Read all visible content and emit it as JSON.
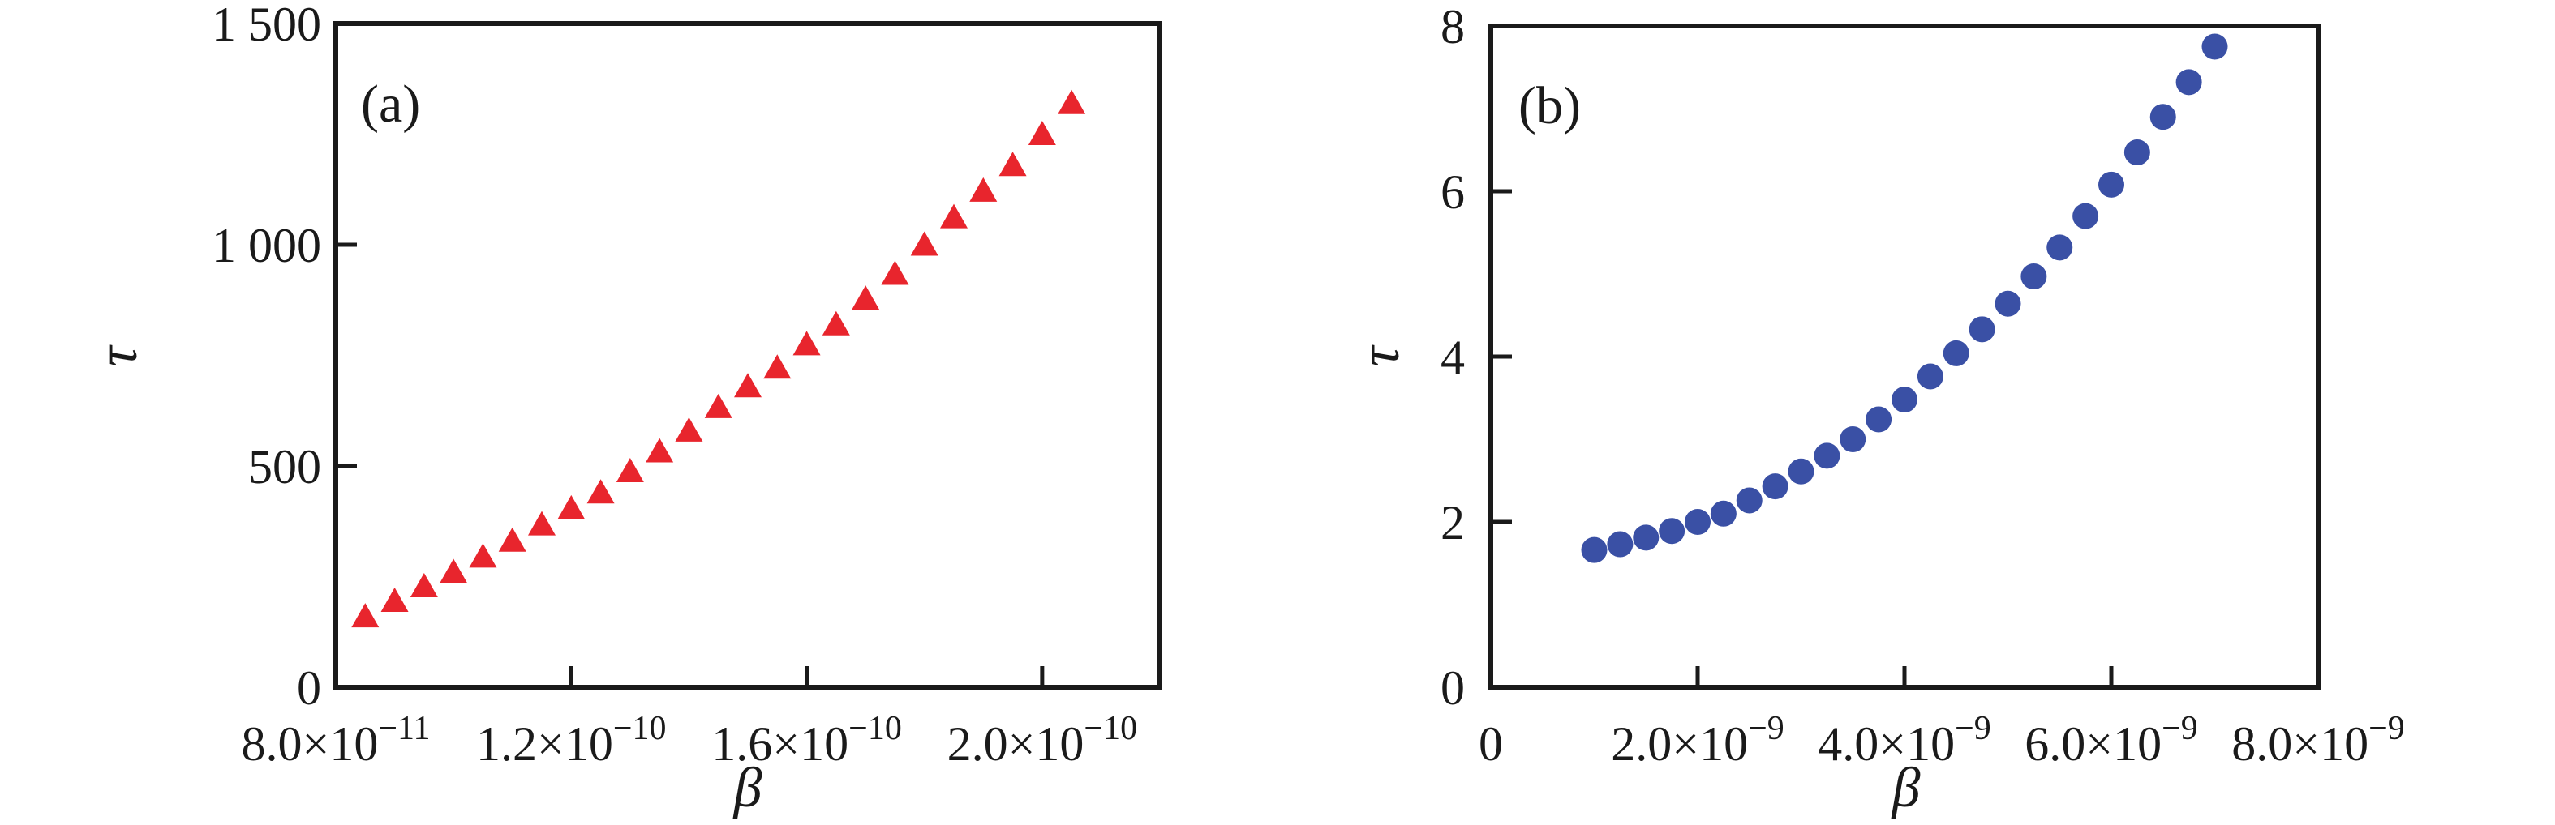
{
  "figure": {
    "background": "#ffffff",
    "frame_color": "#1a1a1a",
    "text_color": "#1a1a1a"
  },
  "chart_data": [
    {
      "id": "a",
      "type": "scatter",
      "panel_label": "(a)",
      "xlabel": "β",
      "ylabel": "τ",
      "legend": "none",
      "grid": false,
      "marker": {
        "shape": "triangle-up",
        "color": "#e8252d",
        "width": 34,
        "height": 30
      },
      "x_units": "1e-10",
      "xlim": [
        0.8,
        2.2
      ],
      "ylim": [
        0,
        1500
      ],
      "x_ticks": [
        {
          "v": 0.8,
          "main": "8.0×10",
          "sup": "−11"
        },
        {
          "v": 1.2,
          "main": "1.2×10",
          "sup": "−10"
        },
        {
          "v": 1.6,
          "main": "1.6×10",
          "sup": "−10"
        },
        {
          "v": 2.0,
          "main": "2.0×10",
          "sup": "−10"
        }
      ],
      "y_ticks": [
        {
          "v": 0,
          "main": "0"
        },
        {
          "v": 500,
          "main": "500"
        },
        {
          "v": 1000,
          "main": "1 000"
        },
        {
          "v": 1500,
          "main": "1 500"
        }
      ],
      "points": {
        "x": [
          0.85,
          0.9,
          0.95,
          1.0,
          1.05,
          1.1,
          1.15,
          1.2,
          1.25,
          1.3,
          1.35,
          1.4,
          1.45,
          1.5,
          1.55,
          1.6,
          1.65,
          1.7,
          1.75,
          1.8,
          1.85,
          1.9,
          1.95,
          2.0,
          2.05
        ],
        "y": [
          160,
          195,
          228,
          260,
          295,
          331,
          368,
          404,
          440,
          488,
          533,
          580,
          633,
          680,
          722,
          775,
          820,
          878,
          934,
          1000,
          1062,
          1122,
          1180,
          1250,
          1320
        ]
      }
    },
    {
      "id": "b",
      "type": "scatter",
      "panel_label": "(b)",
      "xlabel": "β",
      "ylabel": "τ",
      "legend": "none",
      "grid": false,
      "marker": {
        "shape": "circle",
        "color": "#3a50a5",
        "radius": 16
      },
      "x_units": "1e-9",
      "xlim": [
        0,
        8
      ],
      "ylim": [
        0,
        8
      ],
      "x_ticks": [
        {
          "v": 0,
          "main": "0"
        },
        {
          "v": 2,
          "main": "2.0×10",
          "sup": "−9"
        },
        {
          "v": 4,
          "main": "4.0×10",
          "sup": "−9"
        },
        {
          "v": 6,
          "main": "6.0×10",
          "sup": "−9"
        },
        {
          "v": 8,
          "main": "8.0×10",
          "sup": "−9"
        }
      ],
      "y_ticks": [
        {
          "v": 0,
          "main": "0"
        },
        {
          "v": 2,
          "main": "2"
        },
        {
          "v": 4,
          "main": "4"
        },
        {
          "v": 6,
          "main": "6"
        },
        {
          "v": 8,
          "main": "8"
        }
      ],
      "points": {
        "x": [
          1.0,
          1.25,
          1.5,
          1.75,
          2.0,
          2.25,
          2.5,
          2.75,
          3.0,
          3.25,
          3.5,
          3.75,
          4.0,
          4.25,
          4.5,
          4.75,
          5.0,
          5.25,
          5.5,
          5.75,
          6.0,
          6.25,
          6.5,
          6.75,
          7.0
        ],
        "y": [
          1.66,
          1.73,
          1.81,
          1.89,
          2.0,
          2.1,
          2.26,
          2.43,
          2.61,
          2.8,
          3.0,
          3.24,
          3.48,
          3.76,
          4.04,
          4.33,
          4.64,
          4.97,
          5.32,
          5.7,
          6.08,
          6.47,
          6.9,
          7.32,
          7.75
        ]
      }
    }
  ]
}
